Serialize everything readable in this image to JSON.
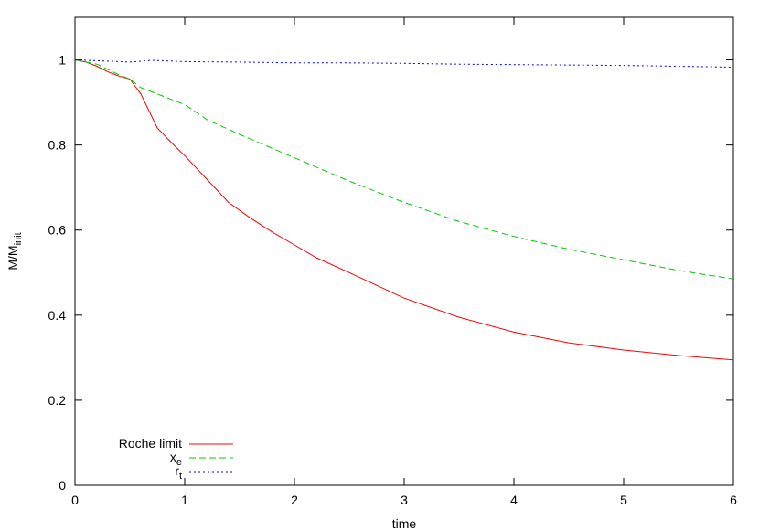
{
  "chart_data": {
    "type": "line",
    "xlabel": "time",
    "ylabel": {
      "base": "M/M",
      "sub": "init"
    },
    "xlim": [
      0,
      6
    ],
    "ylim": [
      0,
      1.1
    ],
    "xticks": [
      0,
      1,
      2,
      3,
      4,
      5,
      6
    ],
    "yticks": [
      0,
      0.2,
      0.4,
      0.6,
      0.8,
      1
    ],
    "xtick_labels": [
      "0",
      "1",
      "2",
      "3",
      "4",
      "5",
      "6"
    ],
    "ytick_labels": [
      "0",
      "0.2",
      "0.4",
      "0.6",
      "0.8",
      "1"
    ],
    "grid": false,
    "legend_position": "bottom-left",
    "series": [
      {
        "name": "Roche limit",
        "legend": {
          "base": "Roche limit",
          "sub": ""
        },
        "color": "#ff0000",
        "dash": "",
        "x": [
          0,
          0.1,
          0.2,
          0.3,
          0.4,
          0.5,
          0.6,
          0.75,
          0.9,
          1.0,
          1.2,
          1.4,
          1.6,
          1.8,
          2.0,
          2.2,
          2.5,
          3.0,
          3.5,
          4.0,
          4.5,
          5.0,
          5.5,
          6.0
        ],
        "y": [
          1.0,
          0.995,
          0.985,
          0.972,
          0.962,
          0.955,
          0.92,
          0.84,
          0.8,
          0.775,
          0.72,
          0.665,
          0.628,
          0.595,
          0.565,
          0.535,
          0.5,
          0.44,
          0.395,
          0.36,
          0.335,
          0.318,
          0.305,
          0.295
        ]
      },
      {
        "name": "x_e",
        "legend": {
          "base": "x",
          "sub": "e"
        },
        "color": "#00cc00",
        "dash": "7,4",
        "x": [
          0,
          0.2,
          0.4,
          0.5,
          0.6,
          0.8,
          1.0,
          1.2,
          1.5,
          2.0,
          2.5,
          3.0,
          3.5,
          4.0,
          4.5,
          5.0,
          5.5,
          6.0
        ],
        "y": [
          1.0,
          0.99,
          0.965,
          0.955,
          0.935,
          0.915,
          0.895,
          0.86,
          0.825,
          0.77,
          0.715,
          0.665,
          0.62,
          0.585,
          0.555,
          0.53,
          0.505,
          0.485
        ]
      },
      {
        "name": "r_t",
        "legend": {
          "base": "r",
          "sub": "t"
        },
        "color": "#0000ff",
        "dash": "2,3",
        "x": [
          0,
          0.5,
          0.7,
          1.0,
          1.5,
          2.0,
          2.5,
          3.0,
          3.5,
          4.0,
          4.5,
          5.0,
          5.5,
          6.0
        ],
        "y": [
          1.0,
          0.995,
          0.999,
          0.996,
          0.995,
          0.993,
          0.993,
          0.992,
          0.99,
          0.989,
          0.988,
          0.987,
          0.985,
          0.983
        ]
      }
    ]
  }
}
